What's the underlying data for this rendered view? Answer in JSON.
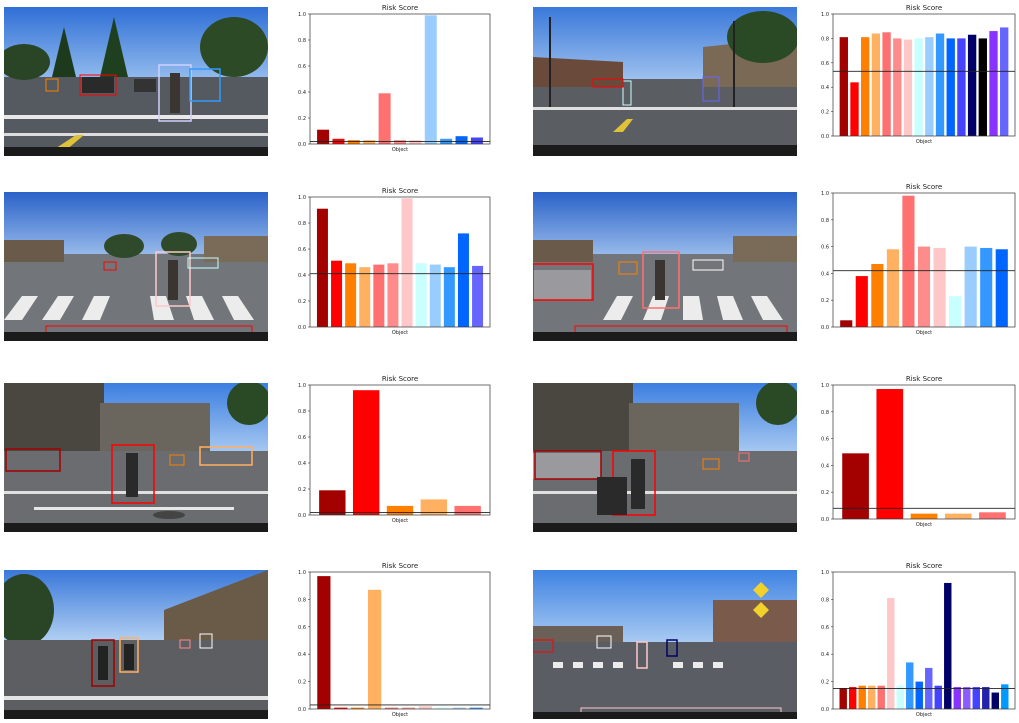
{
  "colors": {
    "palette": [
      "#a30000",
      "#ff0000",
      "#ff8000",
      "#ffb060",
      "#ff7070",
      "#ff8c8c",
      "#ffc8c8",
      "#c8ffff",
      "#99ccff",
      "#3399ff",
      "#0066ff",
      "#4444ff",
      "#6666ff",
      "#000066",
      "#8833ff",
      "#0099ff"
    ],
    "threshold_line": "#222222"
  },
  "chart_data": [
    {
      "type": "bar",
      "title": "Risk Score",
      "xlabel": "Object",
      "ylim": [
        0,
        1.0
      ],
      "yticks": [
        "0.0",
        "0.2",
        "0.4",
        "0.6",
        "0.8",
        "1.0"
      ],
      "values": [
        0.11,
        0.04,
        0.03,
        0.03,
        0.39,
        0.03,
        0.03,
        0.99,
        0.04,
        0.06,
        0.05
      ],
      "colors": [
        "#a30000",
        "#ff0000",
        "#ff8000",
        "#ffb060",
        "#ff7070",
        "#ff8c8c",
        "#ffc8c8",
        "#99ccff",
        "#3399ff",
        "#0066ff",
        "#4444ff"
      ],
      "threshold": 0.02
    },
    {
      "type": "bar",
      "title": "Risk Score",
      "xlabel": "Object",
      "ylim": [
        0,
        1.0
      ],
      "yticks": [
        "0.0",
        "0.2",
        "0.4",
        "0.6",
        "0.8",
        "1.0"
      ],
      "values": [
        0.81,
        0.44,
        0.81,
        0.84,
        0.85,
        0.8,
        0.79,
        0.8,
        0.81,
        0.84,
        0.8,
        0.8,
        0.83,
        0.8,
        0.86,
        0.89
      ],
      "colors": [
        "#a30000",
        "#ff0000",
        "#ff8000",
        "#ffb060",
        "#ff7070",
        "#ff8c8c",
        "#ffc8c8",
        "#c8ffff",
        "#99ccff",
        "#3399ff",
        "#0066ff",
        "#4444ff",
        "#000066",
        "#000000",
        "#8833ff",
        "#6666ff"
      ],
      "threshold": 0.53
    },
    {
      "type": "bar",
      "title": "Risk Score",
      "xlabel": "Object",
      "ylim": [
        0,
        1.0
      ],
      "yticks": [
        "0.0",
        "0.2",
        "0.4",
        "0.6",
        "0.8",
        "1.0"
      ],
      "values": [
        0.91,
        0.51,
        0.49,
        0.46,
        0.48,
        0.49,
        0.99,
        0.49,
        0.48,
        0.46,
        0.72,
        0.47
      ],
      "colors": [
        "#a30000",
        "#ff0000",
        "#ff8000",
        "#ffb060",
        "#ff7070",
        "#ff8c8c",
        "#ffc8c8",
        "#c8ffff",
        "#99ccff",
        "#3399ff",
        "#0066ff",
        "#6666ff"
      ],
      "threshold": 0.41
    },
    {
      "type": "bar",
      "title": "Risk Score",
      "xlabel": "Object",
      "ylim": [
        0,
        1.0
      ],
      "yticks": [
        "0.0",
        "0.2",
        "0.4",
        "0.6",
        "0.8",
        "1.0"
      ],
      "values": [
        0.05,
        0.38,
        0.47,
        0.58,
        0.98,
        0.6,
        0.59,
        0.23,
        0.6,
        0.59,
        0.58
      ],
      "colors": [
        "#a30000",
        "#ff0000",
        "#ff8000",
        "#ffb060",
        "#ff7070",
        "#ff8c8c",
        "#ffc8c8",
        "#c8ffff",
        "#99ccff",
        "#3399ff",
        "#0066ff"
      ],
      "threshold": 0.42
    },
    {
      "type": "bar",
      "title": "Risk Score",
      "xlabel": "Object",
      "ylim": [
        0,
        1.0
      ],
      "yticks": [
        "0.0",
        "0.2",
        "0.4",
        "0.6",
        "0.8",
        "1.0"
      ],
      "values": [
        0.19,
        0.96,
        0.07,
        0.12,
        0.07
      ],
      "colors": [
        "#a30000",
        "#ff0000",
        "#ff8000",
        "#ffb060",
        "#ff7070"
      ],
      "threshold": 0.02
    },
    {
      "type": "bar",
      "title": "Risk Score",
      "xlabel": "Object",
      "ylim": [
        0,
        1.0
      ],
      "yticks": [
        "0.0",
        "0.2",
        "0.4",
        "0.6",
        "0.8",
        "1.0"
      ],
      "values": [
        0.49,
        0.97,
        0.04,
        0.04,
        0.05
      ],
      "colors": [
        "#a30000",
        "#ff0000",
        "#ff8000",
        "#ffb060",
        "#ff7070"
      ],
      "threshold": 0.08
    },
    {
      "type": "bar",
      "title": "Risk Score",
      "xlabel": "Object",
      "ylim": [
        0,
        1.0
      ],
      "yticks": [
        "0.0",
        "0.2",
        "0.4",
        "0.6",
        "0.8",
        "1.0"
      ],
      "values": [
        0.97,
        0.01,
        0.01,
        0.87,
        0.01,
        0.01,
        0.02,
        0.01,
        0.01,
        0.01
      ],
      "colors": [
        "#a30000",
        "#ff0000",
        "#ff8000",
        "#ffb060",
        "#ff7070",
        "#ff8c8c",
        "#ffc8c8",
        "#c8ffff",
        "#99ccff",
        "#3399ff"
      ],
      "threshold": 0.03
    },
    {
      "type": "bar",
      "title": "Risk Score",
      "xlabel": "Object",
      "ylim": [
        0,
        1.0
      ],
      "yticks": [
        "0.0",
        "0.2",
        "0.4",
        "0.6",
        "0.8",
        "1.0"
      ],
      "values": [
        0.15,
        0.16,
        0.17,
        0.17,
        0.17,
        0.81,
        0.17,
        0.34,
        0.2,
        0.3,
        0.17,
        0.92,
        0.16,
        0.16,
        0.16,
        0.16,
        0.12,
        0.18
      ],
      "colors": [
        "#a30000",
        "#ff0000",
        "#ff8000",
        "#ffb060",
        "#ff7070",
        "#ffc8c8",
        "#c8ffff",
        "#3399ff",
        "#0066ff",
        "#6666ff",
        "#4444ff",
        "#000066",
        "#8833ff",
        "#8c5cff",
        "#4444ff",
        "#2222aa",
        "#000066",
        "#0099ff"
      ],
      "threshold": 0.15
    }
  ]
}
